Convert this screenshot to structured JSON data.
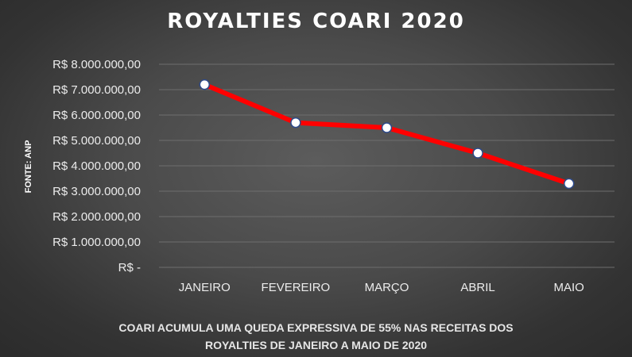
{
  "chart_data": {
    "type": "line",
    "title": "ROYALTIES COARI 2020",
    "source_label": "FONTE: ANP",
    "categories": [
      "JANEIRO",
      "FEVEREIRO",
      "MARÇO",
      "ABRIL",
      "MAIO"
    ],
    "series": [
      {
        "values": [
          7200000,
          5700000,
          5500000,
          4500000,
          3300000
        ]
      }
    ],
    "yticks": [
      {
        "value": 0,
        "label": "R$ -"
      },
      {
        "value": 1000000,
        "label": "R$ 1.000.000,00"
      },
      {
        "value": 2000000,
        "label": "R$ 2.000.000,00"
      },
      {
        "value": 3000000,
        "label": "R$ 3.000.000,00"
      },
      {
        "value": 4000000,
        "label": "R$ 4.000.000,00"
      },
      {
        "value": 5000000,
        "label": "R$ 5.000.000,00"
      },
      {
        "value": 6000000,
        "label": "R$ 6.000.000,00"
      },
      {
        "value": 7000000,
        "label": "R$ 7.000.000,00"
      },
      {
        "value": 8000000,
        "label": "R$ 8.000.000,00"
      }
    ],
    "ylim": [
      0,
      8000000
    ],
    "grid": true,
    "legend": "none",
    "line_color": "#ff0000",
    "marker_fill": "#ffffff",
    "marker_stroke": "#2e4a8a",
    "grid_color": "#6e6e6e"
  },
  "footnote": {
    "line1": "COARI ACUMULA  UMA QUEDA EXPRESSIVA DE 55% NAS RECEITAS DOS",
    "line2": "ROYALTIES DE JANEIRO A MAIO DE 2020"
  }
}
